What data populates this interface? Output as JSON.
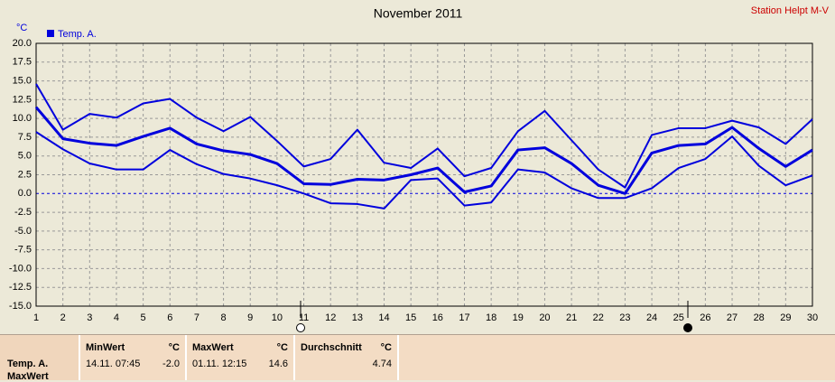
{
  "chart_data": {
    "type": "line",
    "title": "November 2011",
    "station": "Station Helpt M-V",
    "y_unit": "°C",
    "legend": {
      "label": "Temp. A.",
      "color": "#0000dd"
    },
    "x": [
      1,
      2,
      3,
      4,
      5,
      6,
      7,
      8,
      9,
      10,
      11,
      12,
      13,
      14,
      15,
      16,
      17,
      18,
      19,
      20,
      21,
      22,
      23,
      24,
      25,
      26,
      27,
      28,
      29,
      30
    ],
    "series": [
      {
        "color": "#0000dd",
        "values": [
          14.6,
          8.5,
          10.6,
          10.1,
          12.0,
          12.6,
          10.1,
          8.3,
          10.2,
          7.0,
          3.6,
          4.6,
          8.5,
          4.1,
          3.4,
          6.0,
          2.3,
          3.4,
          8.3,
          11.0,
          7.1,
          3.2,
          0.8,
          7.8,
          8.7,
          8.7,
          9.7,
          8.8,
          6.6,
          9.9
        ]
      },
      {
        "color": "#0000dd",
        "values": [
          11.5,
          7.3,
          6.7,
          6.4,
          7.6,
          8.7,
          6.6,
          5.7,
          5.2,
          4.0,
          1.3,
          1.2,
          1.9,
          1.8,
          2.5,
          3.4,
          0.2,
          1.0,
          5.8,
          6.1,
          4.0,
          1.1,
          0.0,
          5.4,
          6.4,
          6.6,
          8.8,
          6.0,
          3.6,
          5.8
        ]
      },
      {
        "color": "#0000dd",
        "values": [
          8.2,
          5.9,
          4.0,
          3.2,
          3.2,
          5.8,
          3.9,
          2.6,
          2.0,
          1.1,
          0.0,
          -1.3,
          -1.4,
          -2.0,
          1.8,
          2.0,
          -1.6,
          -1.2,
          3.2,
          2.8,
          0.7,
          -0.6,
          -0.6,
          0.7,
          3.4,
          4.6,
          7.6,
          3.7,
          1.1,
          2.4
        ]
      }
    ],
    "xlim": [
      1,
      30
    ],
    "xticks": [
      1,
      2,
      3,
      4,
      5,
      6,
      7,
      8,
      9,
      10,
      11,
      12,
      13,
      14,
      15,
      16,
      17,
      18,
      19,
      20,
      21,
      22,
      23,
      24,
      25,
      26,
      27,
      28,
      29,
      30
    ],
    "ylim": [
      -15,
      20
    ],
    "yticks": [
      {
        "value": -15,
        "label": "-15.0"
      },
      {
        "value": -12.5,
        "label": "-12.5"
      },
      {
        "value": -10,
        "label": "-10.0"
      },
      {
        "value": -7.5,
        "label": "-7.5"
      },
      {
        "value": -5,
        "label": "-5.0"
      },
      {
        "value": -2.5,
        "label": "-2.5"
      },
      {
        "value": 0,
        "label": "0.0"
      },
      {
        "value": 2.5,
        "label": "2.5"
      },
      {
        "value": 5,
        "label": "5.0"
      },
      {
        "value": 7.5,
        "label": "7.5"
      },
      {
        "value": 10,
        "label": "10.0"
      },
      {
        "value": 12.5,
        "label": "12.5"
      },
      {
        "value": 15,
        "label": "15.0"
      },
      {
        "value": 17.5,
        "label": "17.5"
      },
      {
        "value": 20,
        "label": "20.0"
      }
    ],
    "grid": true
  },
  "summary": {
    "series_name": "Temp. A.",
    "row_label": "MaxWert",
    "min": {
      "title": "MinWert",
      "unit": "°C",
      "time": "14.11.  07:45",
      "value": "-2.0"
    },
    "max": {
      "title": "MaxWert",
      "unit": "°C",
      "time": "01.11.  12:15",
      "value": "14.6"
    },
    "avg": {
      "title": "Durchschnitt",
      "unit": "°C",
      "value": "4.74"
    }
  }
}
